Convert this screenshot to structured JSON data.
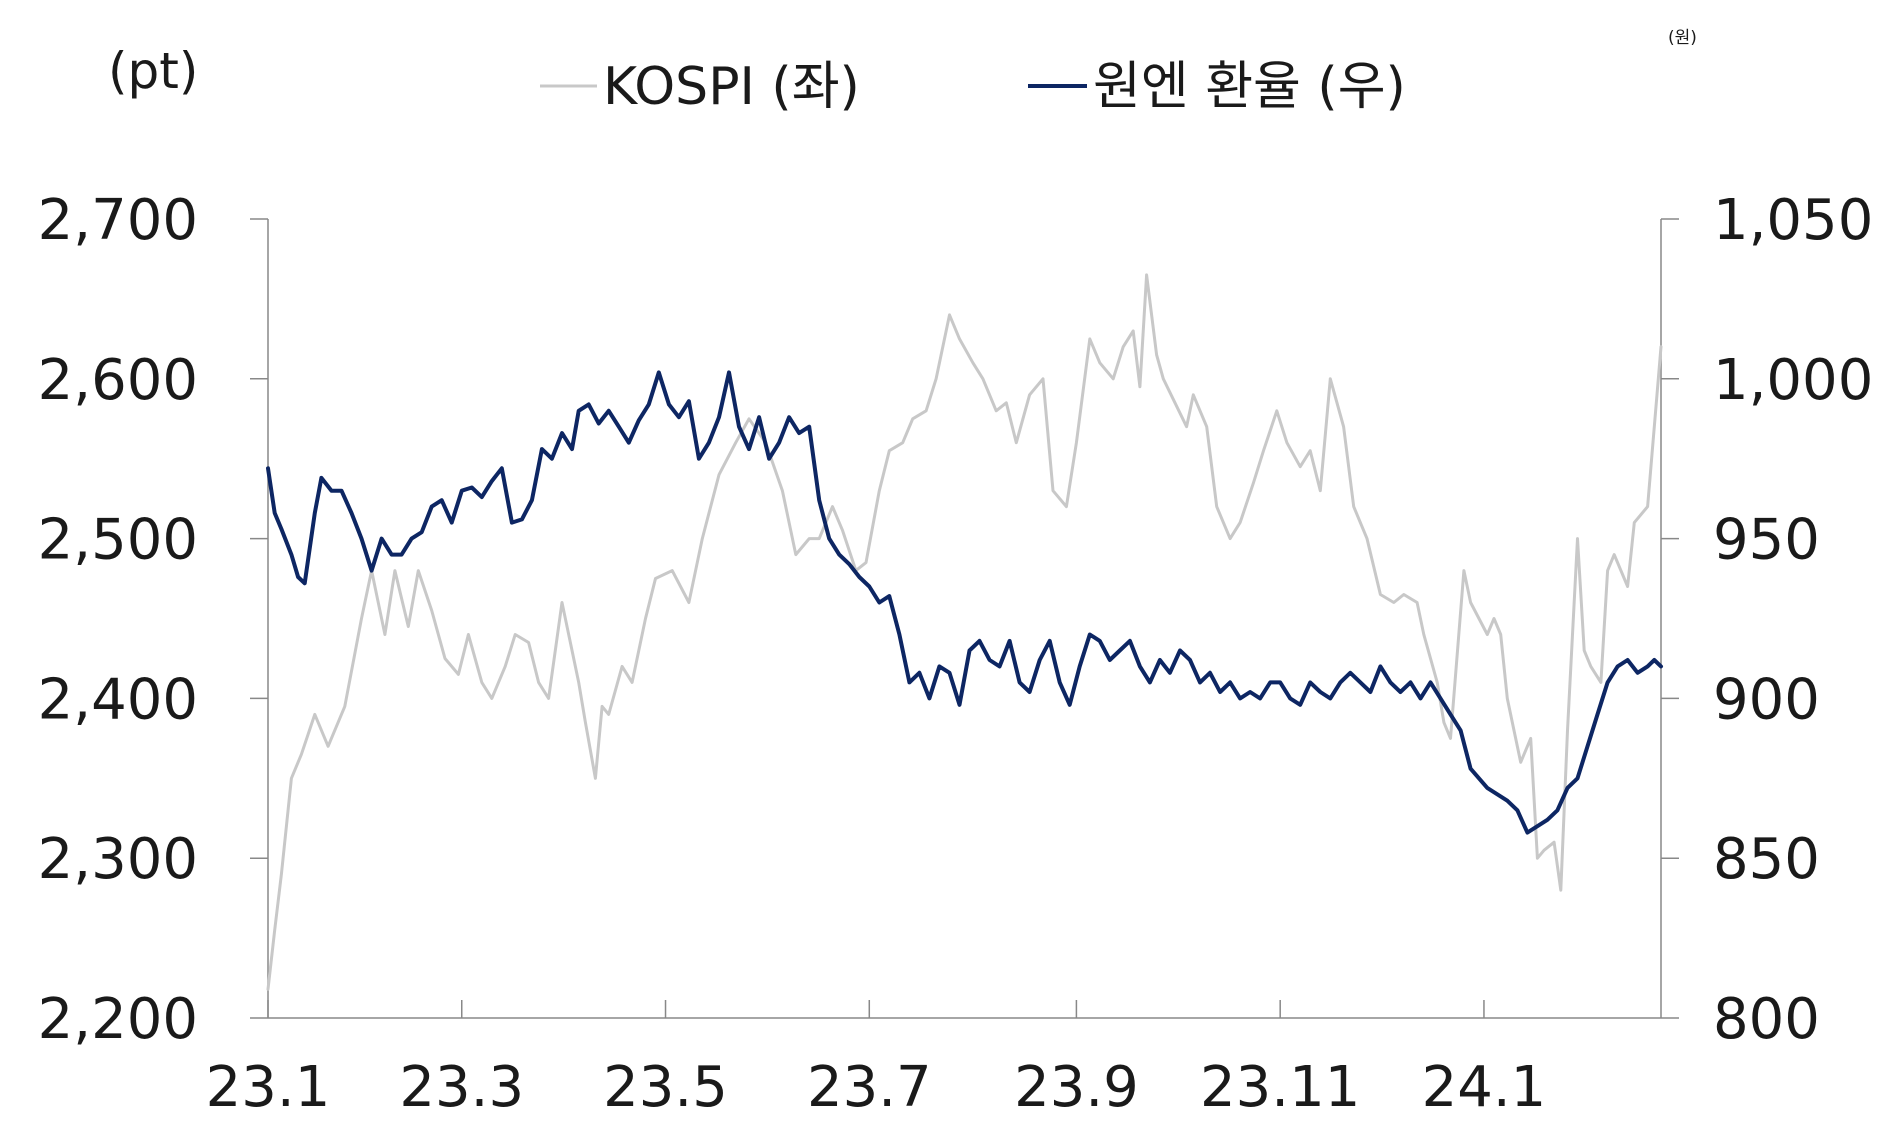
{
  "chart_data": {
    "type": "line",
    "left_unit": "(pt)",
    "right_unit": "(원)",
    "legend": [
      {
        "name": "KOSPI (좌)",
        "color": "#c8c8c8"
      },
      {
        "name": "원엔 환율 (우)",
        "color": "#0d2663"
      }
    ],
    "x_tick_labels": [
      "23.1",
      "23.3",
      "23.5",
      "23.7",
      "23.9",
      "23.11",
      "24.1"
    ],
    "x_tick_dates": [
      "2023-01-02",
      "2023-03-01",
      "2023-05-01",
      "2023-07-01",
      "2023-09-01",
      "2023-11-01",
      "2024-01-01"
    ],
    "x_range": [
      "2023-01-02",
      "2024-02-23"
    ],
    "y_left_ticks": [
      "2,200",
      "2,300",
      "2,400",
      "2,500",
      "2,600",
      "2,700"
    ],
    "y_left_range": [
      2200,
      2700
    ],
    "y_right_ticks": [
      "800",
      "850",
      "900",
      "950",
      "1,000",
      "1,050"
    ],
    "y_right_range": [
      800,
      1050
    ],
    "grid": false,
    "legend_placement": "top",
    "series": [
      {
        "name": "KOSPI (좌)",
        "axis": "left",
        "points": [
          [
            "2023-01-02",
            2218
          ],
          [
            "2023-01-04",
            2255
          ],
          [
            "2023-01-06",
            2290
          ],
          [
            "2023-01-09",
            2350
          ],
          [
            "2023-01-12",
            2365
          ],
          [
            "2023-01-16",
            2390
          ],
          [
            "2023-01-20",
            2370
          ],
          [
            "2023-01-25",
            2395
          ],
          [
            "2023-01-30",
            2450
          ],
          [
            "2023-02-02",
            2480
          ],
          [
            "2023-02-06",
            2440
          ],
          [
            "2023-02-09",
            2480
          ],
          [
            "2023-02-13",
            2445
          ],
          [
            "2023-02-16",
            2480
          ],
          [
            "2023-02-20",
            2455
          ],
          [
            "2023-02-24",
            2425
          ],
          [
            "2023-02-28",
            2415
          ],
          [
            "2023-03-03",
            2440
          ],
          [
            "2023-03-07",
            2410
          ],
          [
            "2023-03-10",
            2400
          ],
          [
            "2023-03-14",
            2420
          ],
          [
            "2023-03-17",
            2440
          ],
          [
            "2023-03-21",
            2435
          ],
          [
            "2023-03-24",
            2410
          ],
          [
            "2023-03-27",
            2400
          ],
          [
            "2023-03-31",
            2460
          ],
          [
            "2023-04-05",
            2410
          ],
          [
            "2023-04-07",
            2385
          ],
          [
            "2023-04-10",
            2350
          ],
          [
            "2023-04-12",
            2395
          ],
          [
            "2023-04-14",
            2390
          ],
          [
            "2023-04-18",
            2420
          ],
          [
            "2023-04-21",
            2410
          ],
          [
            "2023-04-25",
            2450
          ],
          [
            "2023-04-28",
            2475
          ],
          [
            "2023-05-03",
            2480
          ],
          [
            "2023-05-08",
            2460
          ],
          [
            "2023-05-12",
            2500
          ],
          [
            "2023-05-17",
            2540
          ],
          [
            "2023-05-22",
            2560
          ],
          [
            "2023-05-26",
            2575
          ],
          [
            "2023-05-31",
            2560
          ],
          [
            "2023-06-05",
            2530
          ],
          [
            "2023-06-09",
            2490
          ],
          [
            "2023-06-13",
            2500
          ],
          [
            "2023-06-16",
            2500
          ],
          [
            "2023-06-20",
            2520
          ],
          [
            "2023-06-23",
            2505
          ],
          [
            "2023-06-27",
            2480
          ],
          [
            "2023-06-30",
            2485
          ],
          [
            "2023-07-04",
            2530
          ],
          [
            "2023-07-07",
            2555
          ],
          [
            "2023-07-11",
            2560
          ],
          [
            "2023-07-14",
            2575
          ],
          [
            "2023-07-18",
            2580
          ],
          [
            "2023-07-21",
            2600
          ],
          [
            "2023-07-25",
            2640
          ],
          [
            "2023-07-28",
            2625
          ],
          [
            "2023-08-01",
            2610
          ],
          [
            "2023-08-04",
            2600
          ],
          [
            "2023-08-08",
            2580
          ],
          [
            "2023-08-11",
            2585
          ],
          [
            "2023-08-14",
            2560
          ],
          [
            "2023-08-18",
            2590
          ],
          [
            "2023-08-22",
            2600
          ],
          [
            "2023-08-25",
            2530
          ],
          [
            "2023-08-29",
            2520
          ],
          [
            "2023-09-01",
            2560
          ],
          [
            "2023-09-05",
            2625
          ],
          [
            "2023-09-08",
            2610
          ],
          [
            "2023-09-12",
            2600
          ],
          [
            "2023-09-15",
            2620
          ],
          [
            "2023-09-18",
            2630
          ],
          [
            "2023-09-20",
            2595
          ],
          [
            "2023-09-22",
            2665
          ],
          [
            "2023-09-25",
            2615
          ],
          [
            "2023-09-27",
            2600
          ],
          [
            "2023-10-04",
            2570
          ],
          [
            "2023-10-06",
            2590
          ],
          [
            "2023-10-10",
            2570
          ],
          [
            "2023-10-13",
            2520
          ],
          [
            "2023-10-17",
            2500
          ],
          [
            "2023-10-20",
            2510
          ],
          [
            "2023-10-24",
            2535
          ],
          [
            "2023-10-27",
            2555
          ],
          [
            "2023-10-31",
            2580
          ],
          [
            "2023-11-03",
            2560
          ],
          [
            "2023-11-07",
            2545
          ],
          [
            "2023-11-10",
            2555
          ],
          [
            "2023-11-13",
            2530
          ],
          [
            "2023-11-16",
            2600
          ],
          [
            "2023-11-20",
            2570
          ],
          [
            "2023-11-23",
            2520
          ],
          [
            "2023-11-27",
            2500
          ],
          [
            "2023-12-01",
            2465
          ],
          [
            "2023-12-05",
            2460
          ],
          [
            "2023-12-08",
            2465
          ],
          [
            "2023-12-12",
            2460
          ],
          [
            "2023-12-14",
            2440
          ],
          [
            "2023-12-18",
            2410
          ],
          [
            "2023-12-20",
            2385
          ],
          [
            "2023-12-22",
            2375
          ],
          [
            "2023-12-26",
            2480
          ],
          [
            "2023-12-28",
            2460
          ],
          [
            "2024-01-02",
            2440
          ],
          [
            "2024-01-04",
            2450
          ],
          [
            "2024-01-06",
            2440
          ],
          [
            "2024-01-08",
            2400
          ],
          [
            "2024-01-10",
            2380
          ],
          [
            "2024-01-12",
            2360
          ],
          [
            "2024-01-15",
            2375
          ],
          [
            "2024-01-17",
            2300
          ],
          [
            "2024-01-19",
            2305
          ],
          [
            "2024-01-22",
            2310
          ],
          [
            "2024-01-24",
            2280
          ],
          [
            "2024-01-26",
            2380
          ],
          [
            "2024-01-29",
            2500
          ],
          [
            "2024-01-31",
            2430
          ],
          [
            "2024-02-02",
            2420
          ],
          [
            "2024-02-05",
            2410
          ],
          [
            "2024-02-07",
            2480
          ],
          [
            "2024-02-09",
            2490
          ],
          [
            "2024-02-13",
            2470
          ],
          [
            "2024-02-15",
            2510
          ],
          [
            "2024-02-19",
            2520
          ],
          [
            "2024-02-23",
            2620
          ]
        ]
      },
      {
        "name": "원엔 환율 (우)",
        "axis": "right",
        "points": [
          [
            "2023-01-02",
            972
          ],
          [
            "2023-01-04",
            958
          ],
          [
            "2023-01-06",
            953
          ],
          [
            "2023-01-09",
            945
          ],
          [
            "2023-01-11",
            938
          ],
          [
            "2023-01-13",
            936
          ],
          [
            "2023-01-16",
            958
          ],
          [
            "2023-01-18",
            969
          ],
          [
            "2023-01-21",
            965
          ],
          [
            "2023-01-24",
            965
          ],
          [
            "2023-01-27",
            958
          ],
          [
            "2023-01-30",
            950
          ],
          [
            "2023-02-02",
            940
          ],
          [
            "2023-02-05",
            950
          ],
          [
            "2023-02-08",
            945
          ],
          [
            "2023-02-11",
            945
          ],
          [
            "2023-02-14",
            950
          ],
          [
            "2023-02-17",
            952
          ],
          [
            "2023-02-20",
            960
          ],
          [
            "2023-02-23",
            962
          ],
          [
            "2023-02-26",
            955
          ],
          [
            "2023-03-01",
            965
          ],
          [
            "2023-03-04",
            966
          ],
          [
            "2023-03-07",
            963
          ],
          [
            "2023-03-10",
            968
          ],
          [
            "2023-03-13",
            972
          ],
          [
            "2023-03-16",
            955
          ],
          [
            "2023-03-19",
            956
          ],
          [
            "2023-03-22",
            962
          ],
          [
            "2023-03-25",
            978
          ],
          [
            "2023-03-28",
            975
          ],
          [
            "2023-03-31",
            983
          ],
          [
            "2023-04-03",
            978
          ],
          [
            "2023-04-05",
            990
          ],
          [
            "2023-04-08",
            992
          ],
          [
            "2023-04-11",
            986
          ],
          [
            "2023-04-14",
            990
          ],
          [
            "2023-04-17",
            985
          ],
          [
            "2023-04-20",
            980
          ],
          [
            "2023-04-23",
            987
          ],
          [
            "2023-04-26",
            992
          ],
          [
            "2023-04-29",
            1002
          ],
          [
            "2023-05-02",
            992
          ],
          [
            "2023-05-05",
            988
          ],
          [
            "2023-05-08",
            993
          ],
          [
            "2023-05-11",
            975
          ],
          [
            "2023-05-14",
            980
          ],
          [
            "2023-05-17",
            988
          ],
          [
            "2023-05-20",
            1002
          ],
          [
            "2023-05-23",
            985
          ],
          [
            "2023-05-26",
            978
          ],
          [
            "2023-05-29",
            988
          ],
          [
            "2023-06-01",
            975
          ],
          [
            "2023-06-04",
            980
          ],
          [
            "2023-06-07",
            988
          ],
          [
            "2023-06-10",
            983
          ],
          [
            "2023-06-13",
            985
          ],
          [
            "2023-06-16",
            962
          ],
          [
            "2023-06-19",
            950
          ],
          [
            "2023-06-22",
            945
          ],
          [
            "2023-06-25",
            942
          ],
          [
            "2023-06-28",
            938
          ],
          [
            "2023-07-01",
            935
          ],
          [
            "2023-07-04",
            930
          ],
          [
            "2023-07-07",
            932
          ],
          [
            "2023-07-10",
            920
          ],
          [
            "2023-07-13",
            905
          ],
          [
            "2023-07-16",
            908
          ],
          [
            "2023-07-19",
            900
          ],
          [
            "2023-07-22",
            910
          ],
          [
            "2023-07-25",
            908
          ],
          [
            "2023-07-28",
            898
          ],
          [
            "2023-07-31",
            915
          ],
          [
            "2023-08-03",
            918
          ],
          [
            "2023-08-06",
            912
          ],
          [
            "2023-08-09",
            910
          ],
          [
            "2023-08-12",
            918
          ],
          [
            "2023-08-15",
            905
          ],
          [
            "2023-08-18",
            902
          ],
          [
            "2023-08-21",
            912
          ],
          [
            "2023-08-24",
            918
          ],
          [
            "2023-08-27",
            905
          ],
          [
            "2023-08-30",
            898
          ],
          [
            "2023-09-02",
            910
          ],
          [
            "2023-09-05",
            920
          ],
          [
            "2023-09-08",
            918
          ],
          [
            "2023-09-11",
            912
          ],
          [
            "2023-09-14",
            915
          ],
          [
            "2023-09-17",
            918
          ],
          [
            "2023-09-20",
            910
          ],
          [
            "2023-09-23",
            905
          ],
          [
            "2023-09-26",
            912
          ],
          [
            "2023-09-29",
            908
          ],
          [
            "2023-10-02",
            915
          ],
          [
            "2023-10-05",
            912
          ],
          [
            "2023-10-08",
            905
          ],
          [
            "2023-10-11",
            908
          ],
          [
            "2023-10-14",
            902
          ],
          [
            "2023-10-17",
            905
          ],
          [
            "2023-10-20",
            900
          ],
          [
            "2023-10-23",
            902
          ],
          [
            "2023-10-26",
            900
          ],
          [
            "2023-10-29",
            905
          ],
          [
            "2023-11-01",
            905
          ],
          [
            "2023-11-04",
            900
          ],
          [
            "2023-11-07",
            898
          ],
          [
            "2023-11-10",
            905
          ],
          [
            "2023-11-13",
            902
          ],
          [
            "2023-11-16",
            900
          ],
          [
            "2023-11-19",
            905
          ],
          [
            "2023-11-22",
            908
          ],
          [
            "2023-11-25",
            905
          ],
          [
            "2023-11-28",
            902
          ],
          [
            "2023-12-01",
            910
          ],
          [
            "2023-12-04",
            905
          ],
          [
            "2023-12-07",
            902
          ],
          [
            "2023-12-10",
            905
          ],
          [
            "2023-12-13",
            900
          ],
          [
            "2023-12-16",
            905
          ],
          [
            "2023-12-19",
            900
          ],
          [
            "2023-12-22",
            895
          ],
          [
            "2023-12-25",
            890
          ],
          [
            "2023-12-28",
            878
          ],
          [
            "2024-01-02",
            872
          ],
          [
            "2024-01-05",
            870
          ],
          [
            "2024-01-08",
            868
          ],
          [
            "2024-01-11",
            865
          ],
          [
            "2024-01-14",
            858
          ],
          [
            "2024-01-17",
            860
          ],
          [
            "2024-01-20",
            862
          ],
          [
            "2024-01-23",
            865
          ],
          [
            "2024-01-26",
            872
          ],
          [
            "2024-01-29",
            875
          ],
          [
            "2024-02-01",
            885
          ],
          [
            "2024-02-04",
            895
          ],
          [
            "2024-02-07",
            905
          ],
          [
            "2024-02-10",
            910
          ],
          [
            "2024-02-13",
            912
          ],
          [
            "2024-02-16",
            908
          ],
          [
            "2024-02-19",
            910
          ],
          [
            "2024-02-21",
            912
          ],
          [
            "2024-02-23",
            910
          ]
        ]
      }
    ]
  }
}
